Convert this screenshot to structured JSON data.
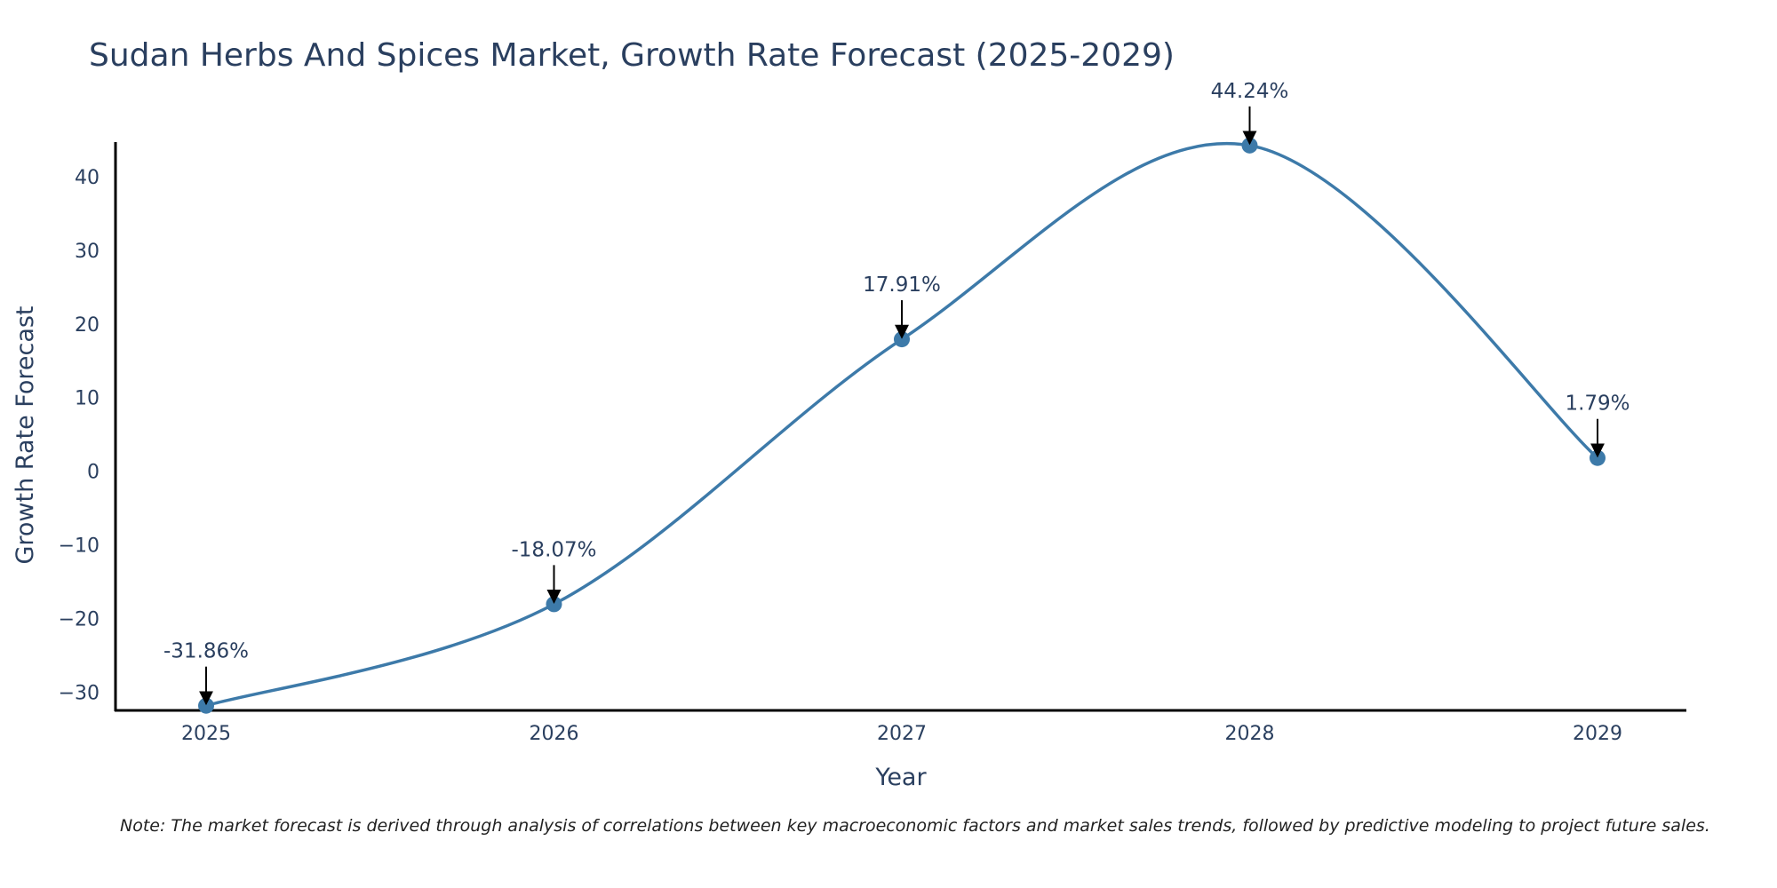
{
  "chart_data": {
    "type": "line",
    "title": "Sudan Herbs And Spices Market, Growth Rate Forecast (2025-2029)",
    "xlabel": "Year",
    "ylabel": "Growth Rate Forecast",
    "categories": [
      "2025",
      "2026",
      "2027",
      "2028",
      "2029"
    ],
    "series": [
      {
        "name": "Growth Rate Forecast",
        "values": [
          -31.86,
          -18.07,
          17.91,
          44.24,
          1.79
        ],
        "labels": [
          "-31.86%",
          "-18.07%",
          "17.91%",
          "44.24%",
          "1.79%"
        ]
      }
    ],
    "ylim": [
      -32.5,
      44.7
    ],
    "yticks": [
      40,
      30,
      20,
      10,
      0,
      -10,
      -20,
      -30
    ],
    "ytick_labels": [
      "40",
      "30",
      "20",
      "10",
      "0",
      "−10",
      "−20",
      "−30"
    ],
    "grid": false,
    "line_shape": "spline",
    "line_color": "#3d7aa9",
    "marker_color": "#3d7aa9",
    "note": "Note: The market forecast is derived through analysis of correlations between key macroeconomic factors and market sales trends, followed by predictive modeling to project future sales."
  }
}
